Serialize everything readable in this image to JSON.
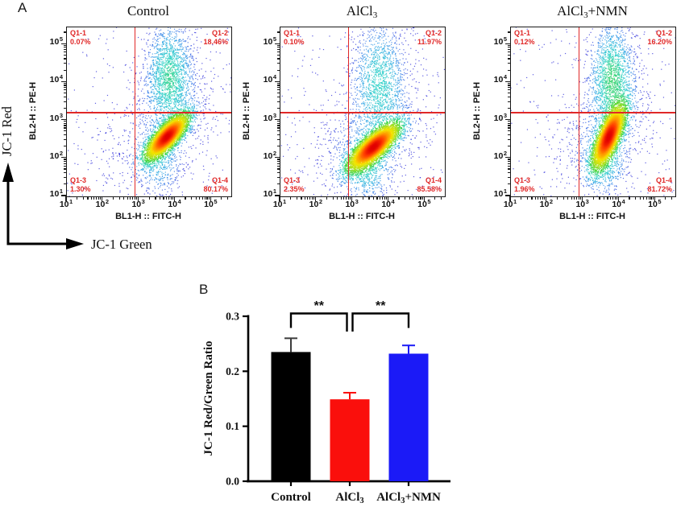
{
  "panels": {
    "a_label": "A",
    "b_label": "B"
  },
  "axis_arrows": {
    "y_label": "JC-1 Red",
    "x_label": "JC-1 Green"
  },
  "chart_data": [
    {
      "type": "scatter",
      "subtype": "flow-cytometry-pseudocolor-density",
      "title": "Control",
      "title_parts": {
        "pre": "Control",
        "sub": "",
        "post": ""
      },
      "xlabel": "BL1-H :: FITC-H",
      "ylabel": "BL2-H :: PE-H",
      "xscale": "log",
      "yscale": "log",
      "xlim_log10": [
        1,
        5.55
      ],
      "ylim_log10": [
        1,
        5.45
      ],
      "tick_labels": [
        {
          "b": "10",
          "e": "1"
        },
        {
          "b": "10",
          "e": "2"
        },
        {
          "b": "10",
          "e": "3"
        },
        {
          "b": "10",
          "e": "4"
        },
        {
          "b": "10",
          "e": "5"
        }
      ],
      "gate": {
        "x_log10": 2.88,
        "y_log10": 3.2
      },
      "gate_color": "#e02828",
      "quadrants": [
        {
          "name": "Q1-1",
          "pct": "0.07%",
          "corner": "tl"
        },
        {
          "name": "Q1-2",
          "pct": "18.46%",
          "corner": "tr"
        },
        {
          "name": "Q1-3",
          "pct": "1.30%",
          "corner": "bl"
        },
        {
          "name": "Q1-4",
          "pct": "80.17%",
          "corner": "br"
        }
      ],
      "clusters": [
        {
          "cx": 3.77,
          "cy": 2.57,
          "sx": 0.4,
          "sy": 0.145,
          "theta": 45,
          "n": 5200
        },
        {
          "cx": 3.84,
          "cy": 4.15,
          "sx": 0.34,
          "sy": 0.72,
          "theta": 0,
          "n": 1900
        },
        {
          "cx": 3.6,
          "cy": 2.7,
          "sx": 0.9,
          "sy": 0.62,
          "theta": 38,
          "n": 650
        },
        {
          "cx": 3.55,
          "cy": 1.8,
          "sx": 0.33,
          "sy": 0.42,
          "theta": 0,
          "n": 430
        },
        {
          "type": "uniform",
          "n": 230
        }
      ],
      "seed": 1
    },
    {
      "type": "scatter",
      "subtype": "flow-cytometry-pseudocolor-density",
      "title": "AlCl3",
      "title_parts": {
        "pre": "AlCl",
        "sub": "3",
        "post": ""
      },
      "xlabel": "BL1-H :: FITC-H",
      "ylabel": "BL2-H :: PE-H",
      "xscale": "log",
      "yscale": "log",
      "xlim_log10": [
        1,
        5.55
      ],
      "ylim_log10": [
        1,
        5.45
      ],
      "tick_labels": [
        {
          "b": "10",
          "e": "1"
        },
        {
          "b": "10",
          "e": "2"
        },
        {
          "b": "10",
          "e": "3"
        },
        {
          "b": "10",
          "e": "4"
        },
        {
          "b": "10",
          "e": "5"
        }
      ],
      "gate": {
        "x_log10": 2.88,
        "y_log10": 3.2
      },
      "gate_color": "#e02828",
      "quadrants": [
        {
          "name": "Q1-1",
          "pct": "0.10%",
          "corner": "tl"
        },
        {
          "name": "Q1-2",
          "pct": "11.97%",
          "corner": "tr"
        },
        {
          "name": "Q1-3",
          "pct": "2.35%",
          "corner": "bl"
        },
        {
          "name": "Q1-4",
          "pct": "85.58%",
          "corner": "br"
        }
      ],
      "clusters": [
        {
          "cx": 3.58,
          "cy": 2.3,
          "sx": 0.45,
          "sy": 0.16,
          "theta": 40,
          "n": 5200
        },
        {
          "cx": 3.74,
          "cy": 4.02,
          "sx": 0.38,
          "sy": 0.8,
          "theta": 0,
          "n": 1500
        },
        {
          "cx": 3.48,
          "cy": 2.55,
          "sx": 0.88,
          "sy": 0.66,
          "theta": 32,
          "n": 730
        },
        {
          "cx": 3.38,
          "cy": 1.7,
          "sx": 0.36,
          "sy": 0.42,
          "theta": 0,
          "n": 600
        },
        {
          "type": "uniform",
          "n": 260
        }
      ],
      "seed": 2
    },
    {
      "type": "scatter",
      "subtype": "flow-cytometry-pseudocolor-density",
      "title": "AlCl3+NMN",
      "title_parts": {
        "pre": "AlCl",
        "sub": "3",
        "post": "+NMN"
      },
      "xlabel": "BL1-H :: FITC-H",
      "ylabel": "BL2-H :: PE-H",
      "xscale": "log",
      "yscale": "log",
      "xlim_log10": [
        1,
        5.55
      ],
      "ylim_log10": [
        1,
        5.45
      ],
      "tick_labels": [
        {
          "b": "10",
          "e": "1"
        },
        {
          "b": "10",
          "e": "2"
        },
        {
          "b": "10",
          "e": "3"
        },
        {
          "b": "10",
          "e": "4"
        },
        {
          "b": "10",
          "e": "5"
        }
      ],
      "gate": {
        "x_log10": 2.88,
        "y_log10": 3.2
      },
      "gate_color": "#e02828",
      "quadrants": [
        {
          "name": "Q1-1",
          "pct": "0.12%",
          "corner": "tl"
        },
        {
          "name": "Q1-2",
          "pct": "16.20%",
          "corner": "tr"
        },
        {
          "name": "Q1-3",
          "pct": "1.96%",
          "corner": "bl"
        },
        {
          "name": "Q1-4",
          "pct": "81.72%",
          "corner": "br"
        }
      ],
      "clusters": [
        {
          "cx": 3.71,
          "cy": 2.57,
          "sx": 0.45,
          "sy": 0.15,
          "theta": 66,
          "n": 5200
        },
        {
          "cx": 3.8,
          "cy": 4.1,
          "sx": 0.31,
          "sy": 0.72,
          "theta": 0,
          "n": 1750
        },
        {
          "cx": 3.58,
          "cy": 2.7,
          "sx": 0.82,
          "sy": 0.6,
          "theta": 42,
          "n": 640
        },
        {
          "cx": 3.6,
          "cy": 1.8,
          "sx": 0.31,
          "sy": 0.4,
          "theta": 0,
          "n": 480
        },
        {
          "type": "uniform",
          "n": 230
        }
      ],
      "seed": 3
    },
    {
      "type": "bar",
      "categories": [
        "Control",
        "AlCl3",
        "AlCl3+NMN"
      ],
      "category_parts": [
        {
          "pre": "Control",
          "sub": "",
          "post": ""
        },
        {
          "pre": "AlCl",
          "sub": "3",
          "post": ""
        },
        {
          "pre": "AlCl",
          "sub": "3",
          "post": "+NMN"
        }
      ],
      "values": [
        0.235,
        0.149,
        0.232
      ],
      "errors": [
        0.025,
        0.012,
        0.015
      ],
      "bar_colors": [
        "#000000",
        "#fa0f0c",
        "#1b1af7"
      ],
      "error_colors": [
        "#3c3c3c",
        "#fa0f0c",
        "#1b1af7"
      ],
      "ylabel": "JC-1 Red/Green Ratio",
      "ylim": [
        0,
        0.3
      ],
      "yticks": [
        0,
        0.1,
        0.2,
        0.3
      ],
      "ytick_labels": [
        "0.0",
        "0.1",
        "0.2",
        "0.3"
      ],
      "significance": [
        {
          "from": 0,
          "to": 1,
          "label": "**"
        },
        {
          "from": 1,
          "to": 2,
          "label": "**"
        }
      ]
    }
  ]
}
